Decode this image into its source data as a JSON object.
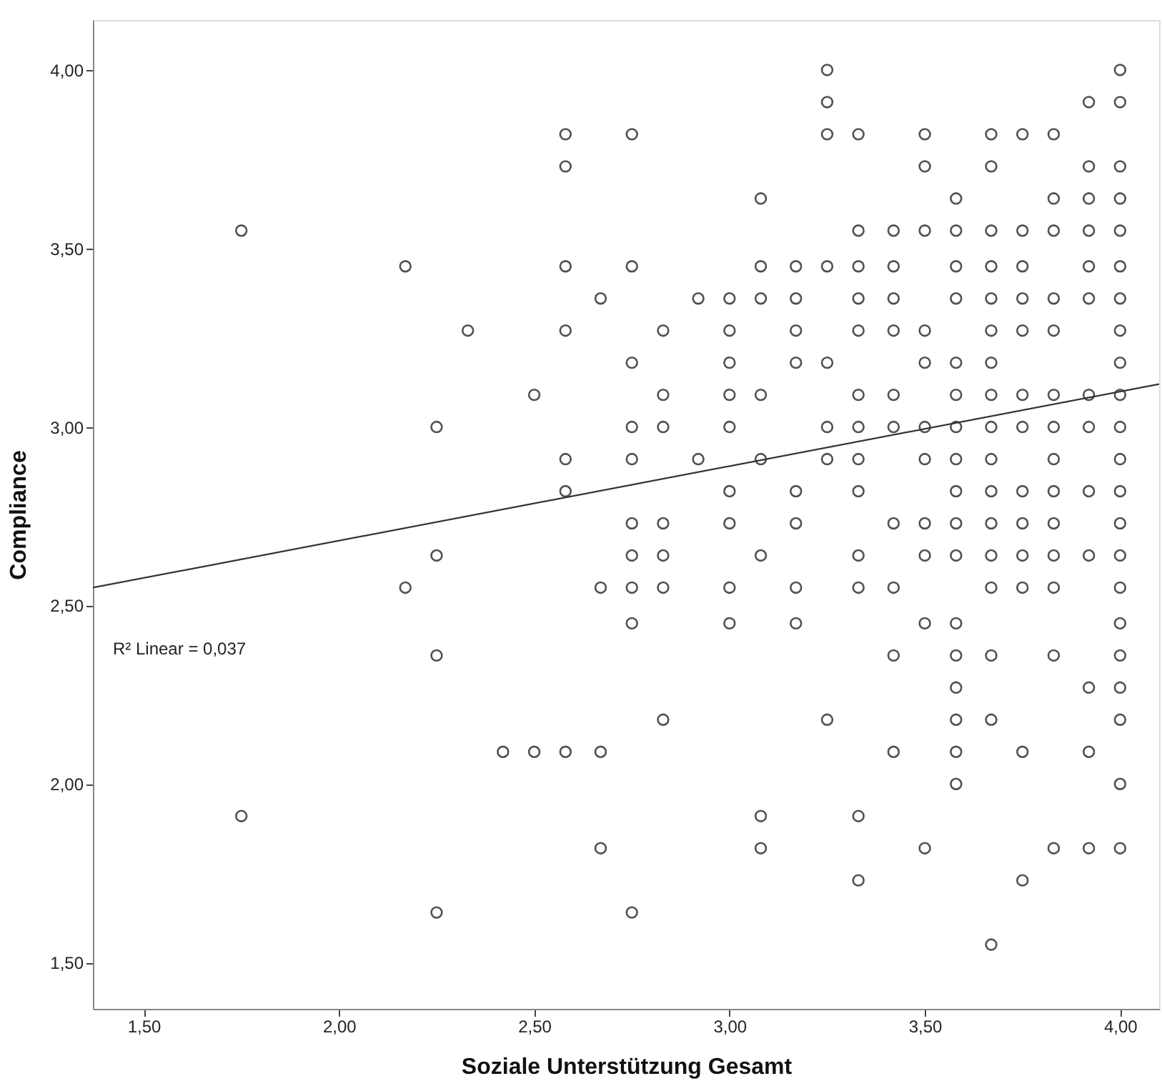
{
  "chart_data": {
    "type": "scatter",
    "xlabel": "Soziale Unterstützung Gesamt",
    "ylabel": "Compliance",
    "annotations": [
      "R² Linear = 0,037"
    ],
    "xlim": [
      1.37,
      4.1
    ],
    "ylim": [
      1.37,
      4.14
    ],
    "xticks": [
      {
        "value": 1.5,
        "label": "1,50"
      },
      {
        "value": 2.0,
        "label": "2,00"
      },
      {
        "value": 2.5,
        "label": "2,50"
      },
      {
        "value": 3.0,
        "label": "3,00"
      },
      {
        "value": 3.5,
        "label": "3,50"
      },
      {
        "value": 4.0,
        "label": "4,00"
      }
    ],
    "yticks": [
      {
        "value": 1.5,
        "label": "1,50"
      },
      {
        "value": 2.0,
        "label": "2,00"
      },
      {
        "value": 2.5,
        "label": "2,50"
      },
      {
        "value": 3.0,
        "label": "3,00"
      },
      {
        "value": 3.5,
        "label": "3,50"
      },
      {
        "value": 4.0,
        "label": "4,00"
      }
    ],
    "grid": false,
    "series": [
      {
        "type": "scatter",
        "color": "#333333",
        "marker": "circle",
        "x": [
          1.75,
          1.75,
          2.17,
          2.17,
          2.25,
          2.25,
          2.25,
          2.25,
          2.33,
          2.42,
          2.5,
          2.5,
          2.58,
          2.58,
          2.58,
          2.58,
          2.58,
          2.58,
          2.58,
          2.67,
          2.67,
          2.67,
          2.67,
          2.75,
          2.75,
          2.75,
          2.75,
          2.75,
          2.75,
          2.75,
          2.75,
          2.75,
          2.75,
          2.83,
          2.83,
          2.83,
          2.83,
          2.83,
          2.83,
          2.83,
          2.92,
          2.92,
          3.0,
          3.0,
          3.0,
          3.0,
          3.0,
          3.0,
          3.0,
          3.0,
          3.0,
          3.08,
          3.08,
          3.08,
          3.08,
          3.08,
          3.08,
          3.08,
          3.08,
          3.17,
          3.17,
          3.17,
          3.17,
          3.17,
          3.17,
          3.17,
          3.17,
          3.25,
          3.25,
          3.25,
          3.25,
          3.25,
          3.25,
          3.25,
          3.25,
          3.33,
          3.33,
          3.33,
          3.33,
          3.33,
          3.33,
          3.33,
          3.33,
          3.33,
          3.33,
          3.33,
          3.33,
          3.33,
          3.42,
          3.42,
          3.42,
          3.42,
          3.42,
          3.42,
          3.42,
          3.42,
          3.42,
          3.42,
          3.5,
          3.5,
          3.5,
          3.5,
          3.5,
          3.5,
          3.5,
          3.5,
          3.5,
          3.5,
          3.5,
          3.58,
          3.58,
          3.58,
          3.58,
          3.58,
          3.58,
          3.58,
          3.58,
          3.58,
          3.58,
          3.58,
          3.58,
          3.58,
          3.58,
          3.58,
          3.58,
          3.58,
          3.67,
          3.67,
          3.67,
          3.67,
          3.67,
          3.67,
          3.67,
          3.67,
          3.67,
          3.67,
          3.67,
          3.67,
          3.67,
          3.67,
          3.67,
          3.67,
          3.67,
          3.75,
          3.75,
          3.75,
          3.75,
          3.75,
          3.75,
          3.75,
          3.75,
          3.75,
          3.75,
          3.75,
          3.75,
          3.75,
          3.83,
          3.83,
          3.83,
          3.83,
          3.83,
          3.83,
          3.83,
          3.83,
          3.83,
          3.83,
          3.83,
          3.83,
          3.83,
          3.83,
          3.92,
          3.92,
          3.92,
          3.92,
          3.92,
          3.92,
          3.92,
          3.92,
          3.92,
          3.92,
          3.92,
          3.92,
          3.92,
          4.0,
          4.0,
          4.0,
          4.0,
          4.0,
          4.0,
          4.0,
          4.0,
          4.0,
          4.0,
          4.0,
          4.0,
          4.0,
          4.0,
          4.0,
          4.0,
          4.0,
          4.0,
          4.0,
          4.0,
          4.0,
          4.0
        ],
        "values": [
          3.55,
          1.91,
          3.45,
          2.55,
          3.0,
          2.64,
          2.36,
          1.64,
          3.27,
          2.09,
          3.09,
          2.09,
          3.82,
          3.73,
          3.45,
          3.27,
          2.91,
          2.82,
          2.09,
          3.36,
          2.55,
          2.09,
          1.82,
          3.82,
          3.45,
          3.18,
          3.0,
          2.91,
          2.73,
          2.64,
          2.55,
          2.45,
          1.64,
          3.27,
          3.09,
          3.0,
          2.73,
          2.64,
          2.55,
          2.18,
          3.36,
          2.91,
          3.36,
          3.27,
          3.18,
          3.09,
          3.0,
          2.82,
          2.73,
          2.55,
          2.45,
          3.64,
          3.45,
          3.36,
          3.09,
          2.91,
          2.64,
          1.91,
          1.82,
          3.45,
          3.36,
          3.27,
          3.18,
          2.82,
          2.73,
          2.55,
          2.45,
          4.0,
          3.91,
          3.82,
          3.45,
          3.18,
          3.0,
          2.91,
          2.18,
          3.82,
          3.55,
          3.45,
          3.36,
          3.27,
          3.09,
          3.0,
          2.91,
          2.82,
          2.64,
          2.55,
          1.91,
          1.73,
          3.55,
          3.45,
          3.36,
          3.27,
          3.09,
          3.0,
          2.73,
          2.55,
          2.36,
          2.09,
          3.82,
          3.73,
          3.55,
          3.27,
          3.18,
          3.0,
          2.91,
          2.73,
          2.64,
          2.45,
          1.82,
          3.64,
          3.55,
          3.45,
          3.36,
          3.18,
          3.09,
          3.0,
          2.91,
          2.82,
          2.73,
          2.64,
          2.45,
          2.36,
          2.27,
          2.18,
          2.09,
          2.0,
          3.82,
          3.73,
          3.55,
          3.45,
          3.36,
          3.27,
          3.18,
          3.09,
          3.0,
          2.91,
          2.82,
          2.73,
          2.64,
          2.55,
          2.36,
          2.18,
          1.55,
          3.82,
          3.55,
          3.45,
          3.36,
          3.27,
          3.09,
          3.0,
          2.82,
          2.73,
          2.64,
          2.55,
          2.09,
          1.73,
          3.82,
          3.64,
          3.55,
          3.36,
          3.27,
          3.09,
          3.0,
          2.91,
          2.82,
          2.73,
          2.64,
          2.55,
          2.36,
          1.82,
          3.91,
          3.73,
          3.64,
          3.55,
          3.45,
          3.36,
          3.09,
          3.0,
          2.82,
          2.64,
          2.27,
          2.09,
          1.82,
          4.0,
          3.91,
          3.73,
          3.64,
          3.55,
          3.45,
          3.36,
          3.27,
          3.18,
          3.09,
          3.0,
          2.91,
          2.82,
          2.73,
          2.64,
          2.55,
          2.45,
          2.36,
          2.27,
          2.18,
          2.0,
          1.82
        ]
      },
      {
        "type": "line",
        "color": "#333333",
        "marker": "none",
        "line_style": "solid",
        "x": [
          1.37,
          4.1
        ],
        "values": [
          2.55,
          3.12
        ]
      }
    ]
  }
}
